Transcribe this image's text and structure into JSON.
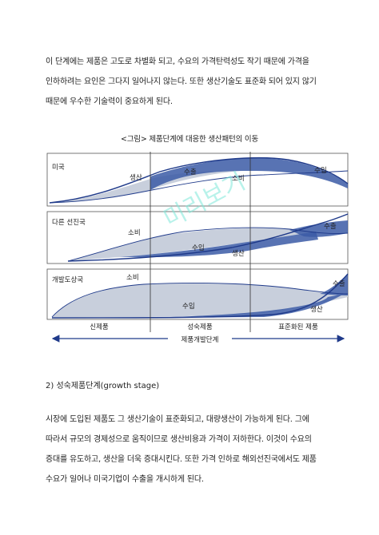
{
  "paragraph1": [
    "이 단계에는 제품은 고도로 차별화 되고, 수요의 가격탄력성도 작기 때문에 가격을",
    "인하하려는 요인은 그다지 일어나지 않는다. 또한 생산기술도 표준화 되어 있지 않기",
    "때문에 우수한 기술력이 중요하게 된다."
  ],
  "figure": {
    "caption": "<그림> 제품단계에 대응한 생산패턴의 이동",
    "watermark": "미리보기",
    "panels": [
      {
        "name": "미국",
        "labels": [
          "생산",
          "수출",
          "소비",
          "수입"
        ]
      },
      {
        "name": "다른 선진국",
        "labels": [
          "소비",
          "수입",
          "생산",
          "수출"
        ]
      },
      {
        "name": "개발도상국",
        "labels": [
          "소비",
          "수입",
          "생산",
          "수출"
        ]
      }
    ],
    "stages": [
      "신제품",
      "성숙제품",
      "표준화된 제품"
    ],
    "axis_label": "제품개발단계"
  },
  "heading": "2) 성숙제품단계(growth stage)",
  "paragraph2": [
    "시장에 도입된 제품도 그 생산기술이 표준화되고, 대량생산이 가능하게 된다. 그에",
    "따라서 규모의 경제성으로 움직이므로 생산비용과 가격이 저하한다. 이것이 수요의",
    "증대를 유도하고, 생산을 더욱 증대시킨다. 또한 가격 인하로 해외선진국에서도 제품",
    "수요가 일어나 미국기업이 수출을 개시하게 된다."
  ],
  "colors": {
    "fill_blue": "#3b5aa6",
    "fill_gray": "#c8cfdc",
    "curve": "#1f3a8a",
    "watermark": "#7fe8d9"
  }
}
